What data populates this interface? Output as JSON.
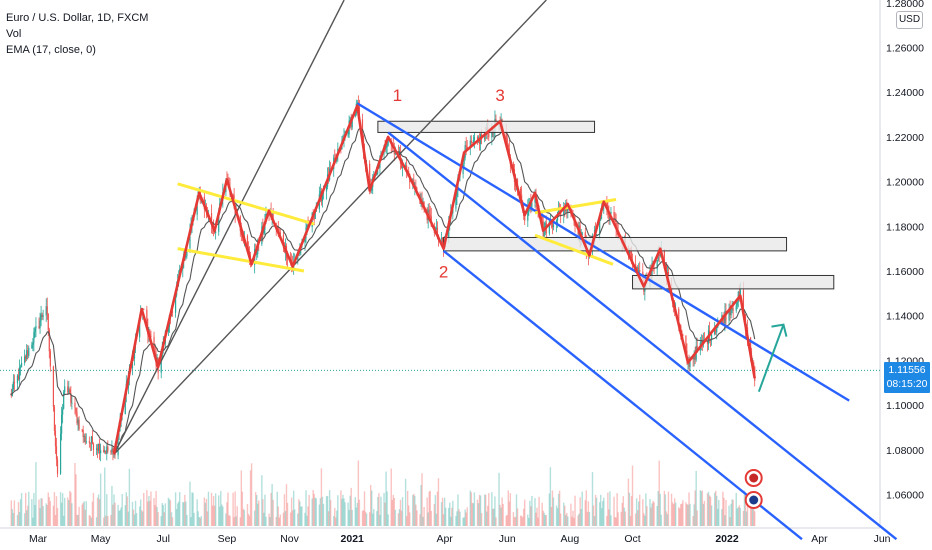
{
  "legend": {
    "symbol": "Euro / U.S. Dollar, 1D, FXCM",
    "vol": "Vol",
    "ema": "EMA (17, close, 0)"
  },
  "price_axis": {
    "currency": "USD",
    "last_price": "1.11556",
    "countdown": "08:15:20"
  },
  "colors": {
    "candle_up": "#26a69a",
    "candle_down": "#ef5350",
    "wave": "#e53935",
    "ema": "#555555",
    "channel": "#2962ff",
    "trendline": "#555555",
    "flag": "#ffeb3b",
    "zone_fill": "#e8e8e8",
    "zone_border": "#333333",
    "arrow": "#26a69a",
    "badge": "#1e88e5"
  },
  "chart_data": {
    "type": "line",
    "title": "Euro / U.S. Dollar, 1D, FXCM",
    "xlabel": "",
    "ylabel": "",
    "ylim": [
      1.045,
      1.28
    ],
    "y_ticks": [
      "1.28000",
      "1.26000",
      "1.24000",
      "1.22000",
      "1.20000",
      "1.18000",
      "1.16000",
      "1.14000",
      "1.12000",
      "1.10000",
      "1.08000",
      "1.06000"
    ],
    "x_ticks": [
      "Mar",
      "May",
      "Jul",
      "Sep",
      "Nov",
      "2021",
      "Apr",
      "Jun",
      "Aug",
      "Oct",
      "2022",
      "Apr",
      "Jun"
    ],
    "series": [
      {
        "name": "Wave",
        "x": [
          "2020-05-14",
          "2020-06-10",
          "2020-06-26",
          "2020-08-05",
          "2020-08-20",
          "2020-09-01",
          "2020-09-25",
          "2020-10-12",
          "2020-11-04",
          "2021-01-06",
          "2021-01-18",
          "2021-02-05",
          "2021-02-25",
          "2021-03-31",
          "2021-04-20",
          "2021-05-25",
          "2021-06-18",
          "2021-06-28",
          "2021-07-06",
          "2021-07-30",
          "2021-08-20",
          "2021-09-03",
          "2021-10-12",
          "2021-10-28",
          "2021-11-24",
          "2022-01-14",
          "2022-01-28"
        ],
        "values": [
          1.078,
          1.143,
          1.117,
          1.195,
          1.178,
          1.201,
          1.163,
          1.187,
          1.162,
          1.234,
          1.196,
          1.22,
          1.203,
          1.17,
          1.213,
          1.227,
          1.185,
          1.195,
          1.178,
          1.19,
          1.167,
          1.191,
          1.153,
          1.17,
          1.119,
          1.149,
          1.112
        ]
      }
    ],
    "levels": [
      {
        "x": [
          "2021-01-26",
          "2021-08-25"
        ],
        "y": [
          1.222,
          1.227
        ]
      },
      {
        "x": [
          "2021-03-31",
          "2022-02-28"
        ],
        "y": [
          1.169,
          1.175
        ]
      },
      {
        "x": [
          "2021-10-01",
          "2022-04-15"
        ],
        "y": [
          1.152,
          1.158
        ]
      }
    ],
    "annotations": [
      "1",
      "2",
      "3"
    ]
  }
}
